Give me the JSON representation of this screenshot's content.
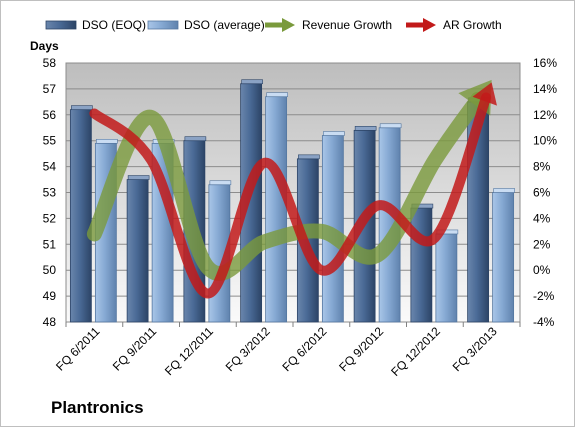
{
  "company": "Plantronics",
  "colors": {
    "dso_eoq": "#4a6a96",
    "dso_avg": "#8eb2dc",
    "revenue_growth": "#7a9a3c",
    "ar_growth": "#c21a1a",
    "plot_background": "#c0c0c0"
  },
  "chart_data": {
    "type": "bar",
    "categories": [
      "FQ 6/2011",
      "FQ 9/2011",
      "FQ 12/2011",
      "FQ 3/2012",
      "FQ 6/2012",
      "FQ 9/2012",
      "FQ 12/2012",
      "FQ 3/2013"
    ],
    "series": [
      {
        "name": "DSO (EOQ)",
        "type": "bar",
        "axis": "left",
        "values": [
          56.2,
          53.5,
          55.0,
          57.2,
          54.3,
          55.4,
          52.4,
          56.5
        ]
      },
      {
        "name": "DSO (average)",
        "type": "bar",
        "axis": "left",
        "values": [
          54.9,
          54.9,
          53.3,
          56.7,
          55.2,
          55.5,
          51.4,
          53.0
        ]
      },
      {
        "name": "Revenue Growth",
        "type": "line",
        "axis": "right",
        "values": [
          0.028,
          0.118,
          0.002,
          0.022,
          0.03,
          0.012,
          0.085,
          0.147
        ]
      },
      {
        "name": "AR Growth",
        "type": "line",
        "axis": "right",
        "values": [
          0.121,
          0.085,
          -0.018,
          0.083,
          0.0,
          0.05,
          0.025,
          0.145
        ]
      }
    ],
    "ylabel": "Days",
    "ylim": [
      48,
      58
    ],
    "yticks": [
      "48",
      "49",
      "50",
      "51",
      "52",
      "53",
      "54",
      "55",
      "56",
      "57",
      "58"
    ],
    "y2lim": [
      -0.04,
      0.16
    ],
    "y2ticks": [
      "-4%",
      "-2%",
      "0%",
      "2%",
      "4%",
      "6%",
      "8%",
      "10%",
      "12%",
      "14%",
      "16%"
    ],
    "grid": true,
    "legend_position": "top"
  }
}
